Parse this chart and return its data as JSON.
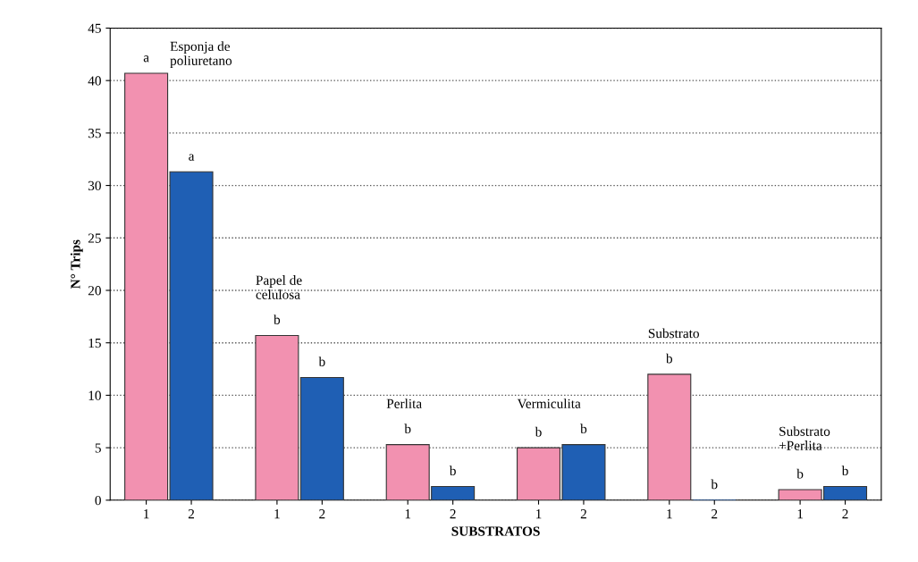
{
  "chart_data": {
    "type": "bar",
    "xlabel": "SUBSTRATOS",
    "ylabel": "N° Trips",
    "categories": [
      "1",
      "2",
      "1",
      "2",
      "1",
      "2",
      "1",
      "2",
      "1",
      "2",
      "1",
      "2"
    ],
    "series": [
      {
        "color": "#f291b0",
        "values": [
          40.7,
          null,
          15.7,
          null,
          5.3,
          null,
          5.0,
          null,
          12.0,
          null,
          1.0,
          null
        ],
        "value_labels": [
          "a",
          null,
          "b",
          null,
          "b",
          null,
          "b",
          null,
          "b",
          null,
          "b",
          null
        ]
      },
      {
        "color": "#1f5fb4",
        "values": [
          null,
          31.3,
          null,
          11.7,
          null,
          1.3,
          null,
          5.3,
          null,
          0,
          null,
          1.3
        ],
        "value_labels": [
          null,
          "a",
          null,
          "b",
          null,
          "b",
          null,
          "b",
          null,
          "b",
          null,
          "b"
        ]
      }
    ],
    "annotations": [
      "Esponja de\npoliuretano",
      "Papel de\ncelulosa",
      "Perlita",
      "Vermiculita",
      "Substrato",
      "Substrato\n+Perlita"
    ],
    "ylim": [
      0,
      45
    ],
    "yticks": [
      0,
      5,
      10,
      15,
      20,
      25,
      30,
      35,
      40,
      45
    ],
    "grid": "y"
  }
}
